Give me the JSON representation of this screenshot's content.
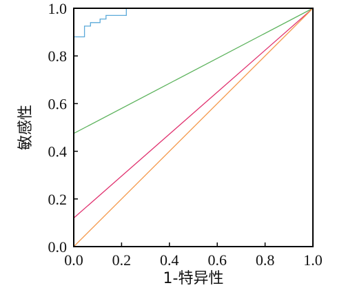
{
  "chart_data": {
    "type": "line",
    "xlabel": "1-特异性",
    "ylabel": "敏感性",
    "xlim": [
      0.0,
      1.0
    ],
    "ylim": [
      0.0,
      1.0
    ],
    "x_ticks": [
      "0.0",
      "0.2",
      "0.4",
      "0.6",
      "0.8",
      "1.0"
    ],
    "y_ticks": [
      "0.0",
      "0.2",
      "0.4",
      "0.6",
      "0.8",
      "1.0"
    ],
    "grid": false,
    "series": [
      {
        "color": "#5aa9d9",
        "step": true,
        "points": [
          [
            0.0,
            0.88
          ],
          [
            0.045,
            0.88
          ],
          [
            0.045,
            0.925
          ],
          [
            0.07,
            0.925
          ],
          [
            0.07,
            0.94
          ],
          [
            0.11,
            0.94
          ],
          [
            0.11,
            0.955
          ],
          [
            0.135,
            0.955
          ],
          [
            0.135,
            0.97
          ],
          [
            0.22,
            0.97
          ],
          [
            0.22,
            1.0
          ],
          [
            1.0,
            1.0
          ]
        ]
      },
      {
        "color": "#5db35d",
        "points": [
          [
            0.0,
            0.475
          ],
          [
            1.0,
            1.0
          ]
        ]
      },
      {
        "color": "#e0306e",
        "points": [
          [
            0.0,
            0.12
          ],
          [
            1.0,
            1.0
          ]
        ]
      },
      {
        "color": "#f59a4d",
        "points": [
          [
            0.0,
            0.0
          ],
          [
            1.0,
            1.0
          ]
        ]
      }
    ]
  }
}
